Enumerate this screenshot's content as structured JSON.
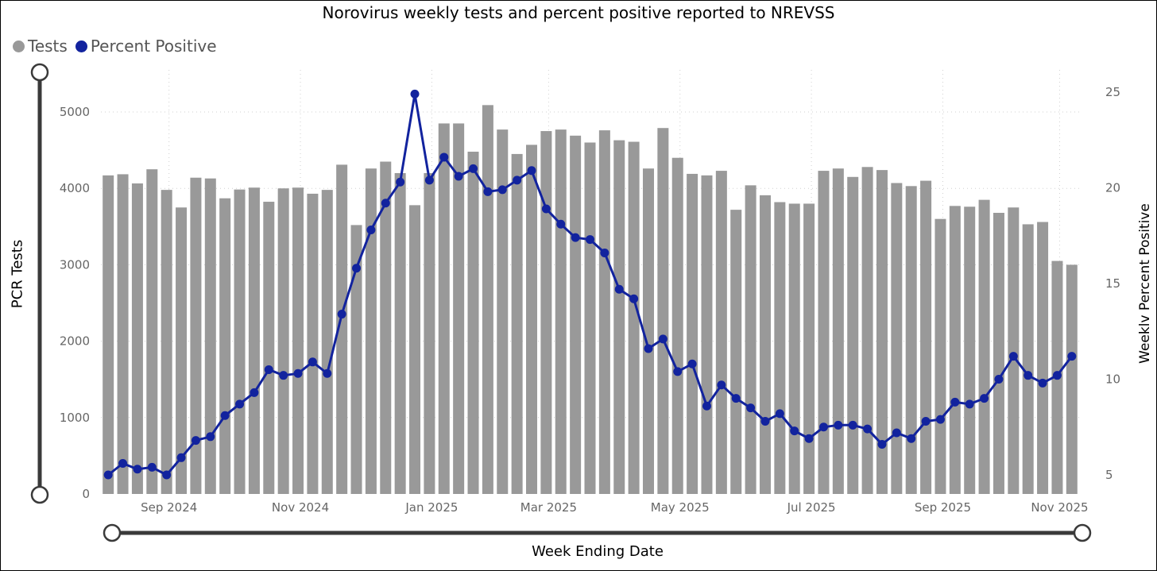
{
  "chart_data": {
    "type": "bar+line",
    "title": "Norovirus weekly tests and percent positive reported to NREVSS",
    "ylabel_left": "PCR Tests",
    "ylabel_right": "Weeklv Percent Positive",
    "xlabel": "Week Ending Date",
    "legend": [
      {
        "name": "Tests",
        "color": "#999999"
      },
      {
        "name": "Percent Positive",
        "color": "#12239e"
      }
    ],
    "legend_position": "top-left",
    "y_left_ticks": [
      "0",
      "1000",
      "2000",
      "3000",
      "4000",
      "5000"
    ],
    "y_right_ticks": [
      "5",
      "10",
      "15",
      "20",
      "25"
    ],
    "x_tick_labels": [
      "Sep 2024",
      "Nov 2024",
      "Jan 2025",
      "Mar 2025",
      "May 2025",
      "Jul 2025",
      "Sep 2025",
      "Nov 2025"
    ],
    "ylim_left": [
      0,
      5000
    ],
    "ylim_right": [
      5,
      25
    ],
    "grid": true,
    "series": [
      {
        "name": "Tests",
        "type": "bar",
        "values": [
          4170,
          4185,
          4065,
          4250,
          3980,
          3750,
          4140,
          4130,
          3870,
          3985,
          4010,
          3825,
          4000,
          4010,
          3930,
          3980,
          4310,
          3520,
          4260,
          4350,
          4200,
          3780,
          4200,
          4850,
          4850,
          4480,
          5090,
          4770,
          4450,
          4570,
          4750,
          4770,
          4690,
          4600,
          4760,
          4630,
          4610,
          4260,
          4790,
          4400,
          4190,
          4170,
          4230,
          3720,
          4040,
          3910,
          3820,
          3800,
          3800,
          4230,
          4260,
          4150,
          4280,
          4240,
          4070,
          4030,
          4100,
          3600,
          3770,
          3760,
          3850,
          3680,
          3750,
          3530,
          3560,
          3050,
          3000
        ]
      },
      {
        "name": "Percent Positive",
        "type": "line",
        "values": [
          5.0,
          5.6,
          5.3,
          5.4,
          5.0,
          5.9,
          6.8,
          7.0,
          8.1,
          8.7,
          9.3,
          10.5,
          10.2,
          10.3,
          10.9,
          10.3,
          13.4,
          15.8,
          17.8,
          19.2,
          20.3,
          24.9,
          20.4,
          21.6,
          20.6,
          21.0,
          19.8,
          19.9,
          20.4,
          20.9,
          18.9,
          18.1,
          17.4,
          17.3,
          16.6,
          14.7,
          14.2,
          11.6,
          12.1,
          10.4,
          10.8,
          8.6,
          9.7,
          9.0,
          8.5,
          7.8,
          8.2,
          7.3,
          6.9,
          7.5,
          7.6,
          7.6,
          7.4,
          6.6,
          7.2,
          6.9,
          7.8,
          7.9,
          8.8,
          8.7,
          9.0,
          10.0,
          11.2,
          10.2,
          9.8,
          10.2,
          11.2
        ]
      }
    ]
  }
}
